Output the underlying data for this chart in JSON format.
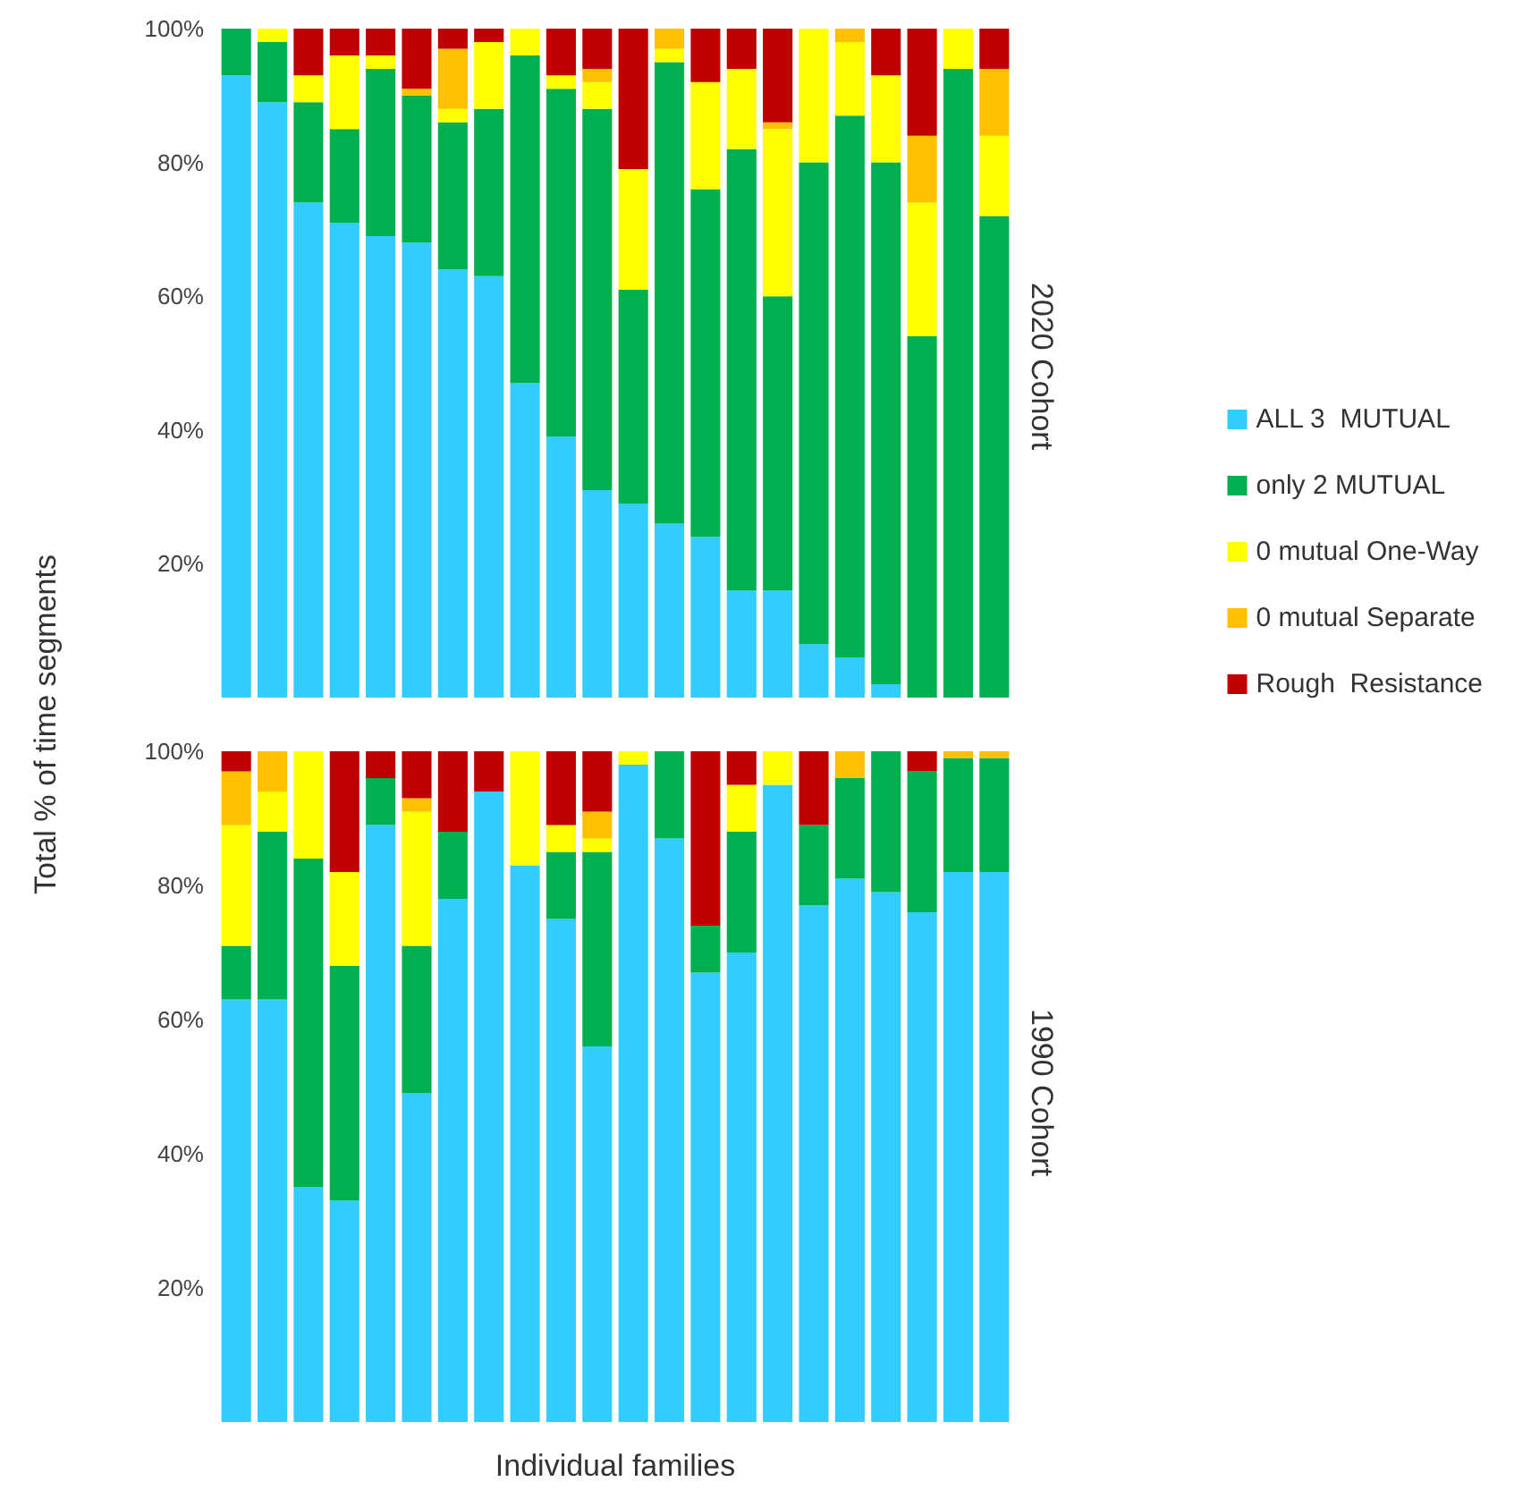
{
  "chart_data": [
    {
      "type": "bar",
      "title": "2020 Cohort",
      "ylabel": "Total % of time segments",
      "stacked": true,
      "legend": "right",
      "tick_labels": "y",
      "grid": false,
      "ylim": [
        0,
        100
      ],
      "yticks": [
        {
          "value": 20,
          "label": "20%"
        },
        {
          "value": 40,
          "label": "40%"
        },
        {
          "value": 60,
          "label": "60%"
        },
        {
          "value": 80,
          "label": "80%"
        },
        {
          "value": 100,
          "label": "100%"
        }
      ],
      "categories": [
        null,
        null,
        null,
        null,
        null,
        null,
        null,
        null,
        null,
        null,
        null,
        null,
        null,
        null,
        null,
        null,
        null,
        null,
        null,
        null,
        null,
        null
      ],
      "series": [
        {
          "name": "ALL 3  MUTUAL",
          "color": "#33ccff",
          "values": [
            93,
            89,
            74,
            71,
            69,
            68,
            64,
            63,
            47,
            39,
            31,
            29,
            26,
            24,
            16,
            16,
            8,
            6,
            2,
            0,
            0,
            0
          ]
        },
        {
          "name": "only 2 MUTUAL",
          "color": "#00b050",
          "values": [
            7,
            9,
            15,
            14,
            25,
            22,
            22,
            25,
            49,
            52,
            57,
            32,
            69,
            52,
            66,
            44,
            72,
            81,
            78,
            54,
            94,
            72
          ]
        },
        {
          "name": "0 mutual One-Way",
          "color": "#ffff00",
          "values": [
            0,
            2,
            4,
            11,
            2,
            0,
            2,
            10,
            4,
            2,
            4,
            18,
            2,
            16,
            12,
            25,
            20,
            11,
            13,
            20,
            6,
            12
          ]
        },
        {
          "name": "0 mutual Separate",
          "color": "#ffc000",
          "values": [
            0,
            0,
            0,
            0,
            0,
            1,
            9,
            0,
            0,
            0,
            2,
            0,
            3,
            0,
            0,
            1,
            0,
            2,
            0,
            10,
            0,
            10
          ]
        },
        {
          "name": "Rough  Resistance",
          "color": "#c00000",
          "values": [
            0,
            0,
            7,
            4,
            4,
            9,
            3,
            2,
            0,
            7,
            6,
            21,
            0,
            8,
            6,
            14,
            0,
            0,
            7,
            16,
            0,
            6
          ]
        }
      ]
    },
    {
      "type": "bar",
      "title": "1990 Cohort",
      "xlabel": "Individual families",
      "stacked": true,
      "tick_labels": "y",
      "grid": false,
      "ylim": [
        0,
        100
      ],
      "yticks": [
        {
          "value": 20,
          "label": "20%"
        },
        {
          "value": 40,
          "label": "40%"
        },
        {
          "value": 60,
          "label": "60%"
        },
        {
          "value": 80,
          "label": "80%"
        },
        {
          "value": 100,
          "label": "100%"
        }
      ],
      "categories": [
        null,
        null,
        null,
        null,
        null,
        null,
        null,
        null,
        null,
        null,
        null,
        null,
        null,
        null,
        null,
        null,
        null,
        null,
        null,
        null,
        null,
        null
      ],
      "series": [
        {
          "color": "#33ccff",
          "values": [
            63,
            63,
            35,
            33,
            89,
            49,
            78,
            94,
            83,
            75,
            56,
            98,
            87,
            67,
            70,
            95,
            77,
            81,
            79,
            76,
            82,
            82
          ]
        },
        {
          "color": "#00b050",
          "values": [
            8,
            25,
            49,
            35,
            7,
            22,
            10,
            0,
            0,
            10,
            29,
            0,
            13,
            7,
            18,
            0,
            12,
            15,
            21,
            21,
            17,
            17
          ]
        },
        {
          "color": "#ffff00",
          "values": [
            18,
            6,
            16,
            14,
            0,
            20,
            0,
            0,
            17,
            4,
            2,
            2,
            0,
            0,
            7,
            5,
            0,
            0,
            0,
            0,
            0,
            0
          ]
        },
        {
          "color": "#ffc000",
          "values": [
            8,
            6,
            0,
            0,
            0,
            2,
            0,
            0,
            0,
            0,
            4,
            0,
            0,
            0,
            0,
            0,
            0,
            4,
            0,
            0,
            1,
            1
          ]
        },
        {
          "color": "#c00000",
          "values": [
            3,
            0,
            0,
            18,
            4,
            7,
            12,
            6,
            0,
            11,
            9,
            0,
            0,
            26,
            5,
            0,
            11,
            0,
            0,
            3,
            0,
            0
          ]
        }
      ]
    }
  ]
}
